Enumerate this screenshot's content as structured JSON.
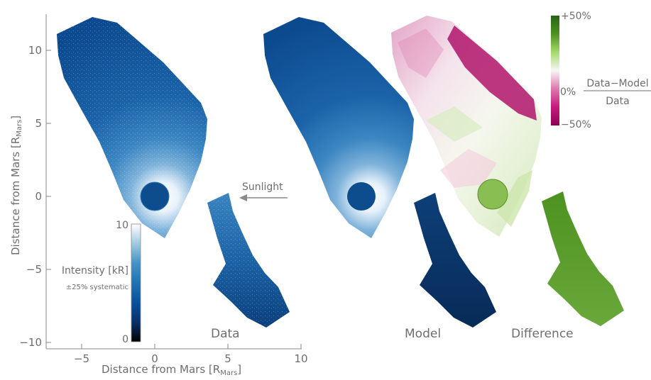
{
  "chart_data": [
    {
      "type": "heatmap",
      "panel": "Data",
      "xlabel": "Distance from Mars [R",
      "xlabel_sub": "Mars",
      "ylabel": "Distance from Mars [R",
      "ylabel_sub": "Mars",
      "xlim": [
        -7.5,
        10
      ],
      "ylim": [
        -10.3,
        12.3
      ],
      "xticks": [
        -5,
        0,
        5,
        10
      ],
      "xtick_labels": [
        "−5",
        "0",
        "5",
        "10"
      ],
      "yticks": [
        10,
        5,
        0,
        -5,
        -10
      ],
      "ytick_labels": [
        "10",
        "5",
        "0",
        "−5",
        "−10"
      ],
      "mars_center": [
        0,
        0
      ],
      "mars_radius": 1,
      "colorbar": {
        "min": 0,
        "max": 10,
        "min_label": "0",
        "max_label": "10",
        "label": "Intensity [kR]",
        "note": "±25% systematic",
        "colors": [
          "#000000",
          "#08306b",
          "#08519c",
          "#2171b5",
          "#4292c6",
          "#9ecae1",
          "#ffffff"
        ]
      }
    },
    {
      "type": "heatmap",
      "panel": "Model",
      "mars_center": [
        0,
        0
      ],
      "mars_radius": 1
    },
    {
      "type": "heatmap",
      "panel": "Difference",
      "quantity_numerator": "Data−Model",
      "quantity_denominator": "Data",
      "colorbar": {
        "min": -50,
        "max": 50,
        "min_label": "−50%",
        "mid_label": "0%",
        "max_label": "+50%",
        "colors": [
          "#8e0152",
          "#c51b7d",
          "#de77ae",
          "#f7f7f7",
          "#a6d96a",
          "#4d9221",
          "#276419"
        ]
      }
    }
  ],
  "annotations": {
    "sunlight": "Sunlight",
    "panel_data": "Data",
    "panel_model": "Model",
    "panel_difference": "Difference"
  }
}
